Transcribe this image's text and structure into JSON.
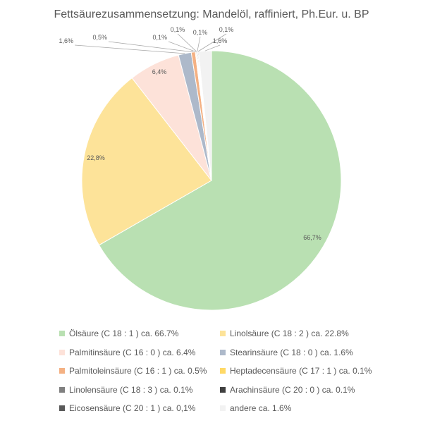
{
  "chart_data": {
    "type": "pie",
    "title": "Fettsäurezusammensetzung: Mandelöl, raffiniert, Ph.Eur. u. BP",
    "slices": [
      {
        "name": "Ölsäure (C 18 : 1 ) ca. 66.7%",
        "value": 66.7,
        "label": "66,7%",
        "color": "#b9e0b2"
      },
      {
        "name": "Linolsäure (C 18 : 2 ) ca. 22.8%",
        "value": 22.8,
        "label": "22,8%",
        "color": "#fde399"
      },
      {
        "name": "Palmitinsäure (C 16 : 0 ) ca. 6.4%",
        "value": 6.4,
        "label": "6,4%",
        "color": "#fde2d9"
      },
      {
        "name": "Stearinsäure (C 18 : 0 ) ca. 1.6%",
        "value": 1.6,
        "label": "1,6%",
        "color": "#adb9ca"
      },
      {
        "name": "Palmitoleinsäure (C 16 : 1 ) ca. 0.5%",
        "value": 0.5,
        "label": "0,5%",
        "color": "#f4b183"
      },
      {
        "name": "Heptadecensäure (C 17 : 1 ) ca. 0.1%",
        "value": 0.1,
        "label": "0,1%",
        "color": "#ffd966"
      },
      {
        "name": "Linolensäure (C 18 : 3 ) ca. 0.1%",
        "value": 0.1,
        "label": "0,1%",
        "color": "#808080"
      },
      {
        "name": "Arachinsäure (C 20 : 0 ) ca. 0.1%",
        "value": 0.1,
        "label": "0,1%",
        "color": "#404040"
      },
      {
        "name": "Eicosensäure (C 20 : 1 ) ca. 0,1%",
        "value": 0.1,
        "label": "0,1%",
        "color": "#595959"
      },
      {
        "name": "andere ca. 1.6%",
        "value": 1.6,
        "label": "1,6%",
        "color": "#f2f2f2"
      }
    ],
    "legend_position": "bottom",
    "colors": {
      "text": "#595959",
      "leader_line": "#a6a6a6",
      "border": "#d9d9d9"
    }
  }
}
